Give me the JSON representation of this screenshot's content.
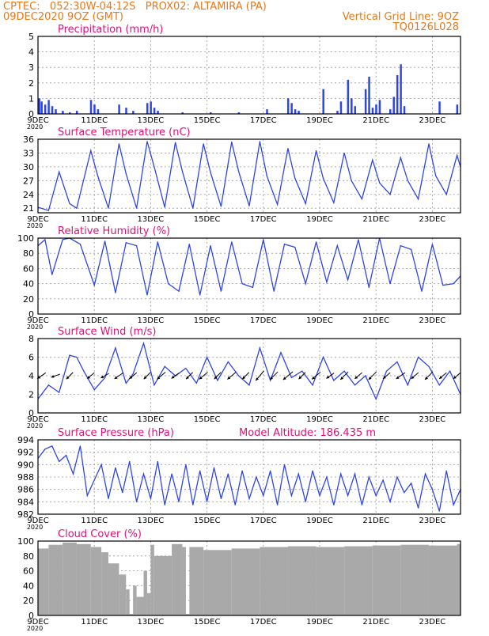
{
  "header": {
    "left_line1": "CPTEC:   052:30W-04:12S   PROX02: ALTAMIRA (PA)",
    "left_line2": "09DEC2020 9OZ (GMT)",
    "right_line2": "Vertical Grid Line: 9OZ",
    "right_line3": "TQ0126L028"
  },
  "colors": {
    "header": "#e8781a",
    "panel_title": "#e0107a",
    "series": "#2e46e8",
    "cloud": "#a9a9a9",
    "arrows": "#000000",
    "grid": "#9a9a9a"
  },
  "x_axis": {
    "type": "date",
    "range": [
      "2020-12-09T09:00Z",
      "2020-12-24T09:00Z"
    ],
    "tick_labels": [
      "9DEC",
      "11DEC",
      "13DEC",
      "15DEC",
      "17DEC",
      "19DEC",
      "21DEC",
      "23DEC"
    ],
    "tick_dates": [
      "2020-12-09T09:00Z",
      "2020-12-11T09:00Z",
      "2020-12-13T09:00Z",
      "2020-12-15T09:00Z",
      "2020-12-17T09:00Z",
      "2020-12-19T09:00Z",
      "2020-12-21T09:00Z",
      "2020-12-23T09:00Z"
    ],
    "year_label": "2020"
  },
  "chart_data": [
    {
      "type": "bar",
      "title": "Precipitation (mm/h)",
      "ylim": [
        0,
        5
      ],
      "yticks": [
        0,
        1,
        2,
        3,
        4,
        5
      ],
      "grid": true,
      "x": [
        "2020-12-09T10:00Z",
        "2020-12-09T12:00Z",
        "2020-12-09T15:00Z",
        "2020-12-09T18:00Z",
        "2020-12-09T21:00Z",
        "2020-12-10T00:00Z",
        "2020-12-10T06:00Z",
        "2020-12-10T12:00Z",
        "2020-12-10T18:00Z",
        "2020-12-11T06:00Z",
        "2020-12-11T09:00Z",
        "2020-12-11T12:00Z",
        "2020-12-12T06:00Z",
        "2020-12-12T12:00Z",
        "2020-12-12T18:00Z",
        "2020-12-13T06:00Z",
        "2020-12-13T09:00Z",
        "2020-12-13T12:00Z",
        "2020-12-13T15:00Z",
        "2020-12-14T12:00Z",
        "2020-12-15T12:00Z",
        "2020-12-16T12:00Z",
        "2020-12-17T12:00Z",
        "2020-12-18T06:00Z",
        "2020-12-18T09:00Z",
        "2020-12-18T12:00Z",
        "2020-12-18T15:00Z",
        "2020-12-19T12:00Z",
        "2020-12-20T00:00Z",
        "2020-12-20T03:00Z",
        "2020-12-20T09:00Z",
        "2020-12-20T12:00Z",
        "2020-12-20T15:00Z",
        "2020-12-21T00:00Z",
        "2020-12-21T03:00Z",
        "2020-12-21T06:00Z",
        "2020-12-21T09:00Z",
        "2020-12-21T12:00Z",
        "2020-12-21T21:00Z",
        "2020-12-22T00:00Z",
        "2020-12-22T03:00Z",
        "2020-12-22T06:00Z",
        "2020-12-22T09:00Z",
        "2020-12-23T15:00Z",
        "2020-12-24T06:00Z"
      ],
      "values": [
        1.0,
        0.8,
        0.6,
        0.9,
        0.5,
        0.3,
        0.2,
        0.1,
        0.2,
        0.9,
        0.6,
        0.3,
        0.6,
        0.4,
        0.2,
        0.7,
        0.8,
        0.4,
        0.2,
        0.1,
        0.1,
        0.1,
        0.3,
        1.0,
        0.7,
        0.3,
        0.2,
        1.6,
        0.2,
        0.8,
        2.2,
        1.0,
        0.5,
        1.6,
        2.4,
        0.4,
        0.6,
        0.9,
        0.3,
        1.1,
        2.5,
        3.2,
        0.5,
        0.8,
        0.6
      ]
    },
    {
      "type": "line",
      "title": "Surface Temperature (nC)",
      "ylim": [
        20,
        36
      ],
      "yticks": [
        21,
        24,
        27,
        30,
        33,
        36
      ],
      "grid": true,
      "x": [
        "2020-12-09T09:00Z",
        "2020-12-09T18:00Z",
        "2020-12-10T03:00Z",
        "2020-12-10T12:00Z",
        "2020-12-10T18:00Z",
        "2020-12-11T06:00Z",
        "2020-12-11T12:00Z",
        "2020-12-11T21:00Z",
        "2020-12-12T06:00Z",
        "2020-12-12T12:00Z",
        "2020-12-12T21:00Z",
        "2020-12-13T06:00Z",
        "2020-12-13T12:00Z",
        "2020-12-13T21:00Z",
        "2020-12-14T06:00Z",
        "2020-12-14T12:00Z",
        "2020-12-14T21:00Z",
        "2020-12-15T06:00Z",
        "2020-12-15T12:00Z",
        "2020-12-15T21:00Z",
        "2020-12-16T06:00Z",
        "2020-12-16T12:00Z",
        "2020-12-16T21:00Z",
        "2020-12-17T06:00Z",
        "2020-12-17T12:00Z",
        "2020-12-17T21:00Z",
        "2020-12-18T06:00Z",
        "2020-12-18T12:00Z",
        "2020-12-18T21:00Z",
        "2020-12-19T06:00Z",
        "2020-12-19T12:00Z",
        "2020-12-19T21:00Z",
        "2020-12-20T06:00Z",
        "2020-12-20T12:00Z",
        "2020-12-20T21:00Z",
        "2020-12-21T06:00Z",
        "2020-12-21T12:00Z",
        "2020-12-21T21:00Z",
        "2020-12-22T06:00Z",
        "2020-12-22T12:00Z",
        "2020-12-22T21:00Z",
        "2020-12-23T06:00Z",
        "2020-12-23T12:00Z",
        "2020-12-23T21:00Z",
        "2020-12-24T06:00Z",
        "2020-12-24T09:00Z"
      ],
      "values": [
        21.2,
        20.5,
        28.9,
        22.0,
        21.0,
        33.5,
        28.0,
        21.0,
        35.0,
        28.5,
        21.0,
        35.5,
        30.0,
        21.2,
        35.3,
        29.0,
        21.0,
        35.0,
        28.8,
        21.4,
        35.4,
        29.0,
        21.5,
        35.5,
        28.0,
        21.8,
        34.0,
        27.5,
        22.0,
        33.5,
        27.5,
        22.2,
        33.0,
        27.0,
        23.0,
        31.5,
        26.5,
        24.0,
        32.0,
        27.0,
        23.0,
        35.0,
        28.0,
        24.0,
        32.5,
        30.0
      ]
    },
    {
      "type": "line",
      "title": "Relative Humidity (%)",
      "ylim": [
        0,
        100
      ],
      "yticks": [
        0,
        20,
        40,
        60,
        80,
        100
      ],
      "grid": true,
      "x": [
        "2020-12-09T09:00Z",
        "2020-12-09T15:00Z",
        "2020-12-09T21:00Z",
        "2020-12-10T06:00Z",
        "2020-12-10T12:00Z",
        "2020-12-10T21:00Z",
        "2020-12-11T09:00Z",
        "2020-12-11T18:00Z",
        "2020-12-12T03:00Z",
        "2020-12-12T12:00Z",
        "2020-12-12T21:00Z",
        "2020-12-13T06:00Z",
        "2020-12-13T15:00Z",
        "2020-12-14T00:00Z",
        "2020-12-14T09:00Z",
        "2020-12-14T18:00Z",
        "2020-12-15T03:00Z",
        "2020-12-15T12:00Z",
        "2020-12-15T21:00Z",
        "2020-12-16T06:00Z",
        "2020-12-16T15:00Z",
        "2020-12-17T00:00Z",
        "2020-12-17T09:00Z",
        "2020-12-17T18:00Z",
        "2020-12-18T03:00Z",
        "2020-12-18T12:00Z",
        "2020-12-18T21:00Z",
        "2020-12-19T06:00Z",
        "2020-12-19T15:00Z",
        "2020-12-20T00:00Z",
        "2020-12-20T09:00Z",
        "2020-12-20T18:00Z",
        "2020-12-21T03:00Z",
        "2020-12-21T12:00Z",
        "2020-12-21T21:00Z",
        "2020-12-22T06:00Z",
        "2020-12-22T15:00Z",
        "2020-12-23T00:00Z",
        "2020-12-23T09:00Z",
        "2020-12-23T18:00Z",
        "2020-12-24T03:00Z",
        "2020-12-24T09:00Z"
      ],
      "values": [
        90,
        98,
        52,
        98,
        100,
        92,
        38,
        96,
        28,
        94,
        90,
        25,
        95,
        40,
        30,
        92,
        25,
        90,
        30,
        95,
        40,
        35,
        98,
        30,
        92,
        88,
        40,
        95,
        42,
        90,
        45,
        98,
        35,
        100,
        40,
        90,
        85,
        30,
        92,
        38,
        40,
        50
      ]
    },
    {
      "type": "line",
      "title": "Surface Wind (m/s)",
      "ylim": [
        0,
        8
      ],
      "yticks": [
        0,
        2,
        4,
        6,
        8
      ],
      "grid": true,
      "x": [
        "2020-12-09T09:00Z",
        "2020-12-09T18:00Z",
        "2020-12-10T03:00Z",
        "2020-12-10T12:00Z",
        "2020-12-10T18:00Z",
        "2020-12-11T00:00Z",
        "2020-12-11T09:00Z",
        "2020-12-11T18:00Z",
        "2020-12-12T03:00Z",
        "2020-12-12T12:00Z",
        "2020-12-12T18:00Z",
        "2020-12-13T03:00Z",
        "2020-12-13T12:00Z",
        "2020-12-13T21:00Z",
        "2020-12-14T06:00Z",
        "2020-12-14T15:00Z",
        "2020-12-15T00:00Z",
        "2020-12-15T09:00Z",
        "2020-12-15T18:00Z",
        "2020-12-16T03:00Z",
        "2020-12-16T12:00Z",
        "2020-12-16T21:00Z",
        "2020-12-17T06:00Z",
        "2020-12-17T15:00Z",
        "2020-12-18T00:00Z",
        "2020-12-18T09:00Z",
        "2020-12-18T18:00Z",
        "2020-12-19T03:00Z",
        "2020-12-19T12:00Z",
        "2020-12-19T21:00Z",
        "2020-12-20T06:00Z",
        "2020-12-20T15:00Z",
        "2020-12-21T00:00Z",
        "2020-12-21T09:00Z",
        "2020-12-21T18:00Z",
        "2020-12-22T03:00Z",
        "2020-12-22T12:00Z",
        "2020-12-22T21:00Z",
        "2020-12-23T06:00Z",
        "2020-12-23T15:00Z",
        "2020-12-24T00:00Z",
        "2020-12-24T09:00Z"
      ],
      "values": [
        1.5,
        3.0,
        2.2,
        6.2,
        6.0,
        4.5,
        2.5,
        3.8,
        7.0,
        3.2,
        4.2,
        7.5,
        3.0,
        5.0,
        4.0,
        4.8,
        3.2,
        6.0,
        3.5,
        5.5,
        4.0,
        3.0,
        7.0,
        3.5,
        6.5,
        3.8,
        4.5,
        3.0,
        6.0,
        3.5,
        4.5,
        3.0,
        4.0,
        1.5,
        4.5,
        5.5,
        3.0,
        6.0,
        5.0,
        3.0,
        4.5,
        2.0
      ],
      "arrows": {
        "description": "wind direction vectors",
        "x": [
          "2020-12-09T12:00Z",
          "2020-12-10T00:00Z",
          "2020-12-10T12:00Z",
          "2020-12-11T06:00Z",
          "2020-12-11T18:00Z",
          "2020-12-12T06:00Z",
          "2020-12-12T18:00Z",
          "2020-12-13T06:00Z",
          "2020-12-13T18:00Z",
          "2020-12-14T06:00Z",
          "2020-12-14T18:00Z",
          "2020-12-15T06:00Z",
          "2020-12-15T18:00Z",
          "2020-12-16T06:00Z",
          "2020-12-16T18:00Z",
          "2020-12-17T06:00Z",
          "2020-12-17T18:00Z",
          "2020-12-18T06:00Z",
          "2020-12-18T18:00Z",
          "2020-12-19T06:00Z",
          "2020-12-19T18:00Z",
          "2020-12-20T06:00Z",
          "2020-12-20T18:00Z",
          "2020-12-21T06:00Z",
          "2020-12-21T18:00Z",
          "2020-12-22T06:00Z",
          "2020-12-22T18:00Z",
          "2020-12-23T06:00Z",
          "2020-12-23T18:00Z",
          "2020-12-24T06:00Z"
        ],
        "speed": [
          3.2,
          3.0,
          3.0,
          3.0,
          3.0,
          3.5,
          3.0,
          3.0,
          3.5,
          3.0,
          3.0,
          3.5,
          3.0,
          3.5,
          3.0,
          4.0,
          3.5,
          4.0,
          3.0,
          3.5,
          3.0,
          3.5,
          3.0,
          3.5,
          3.0,
          3.5,
          3.0,
          3.5,
          3.0,
          3.0
        ],
        "dir_deg": [
          55,
          70,
          45,
          50,
          60,
          55,
          50,
          45,
          50,
          55,
          45,
          50,
          45,
          50,
          45,
          40,
          45,
          50,
          45,
          50,
          55,
          45,
          50,
          45,
          50,
          55,
          50,
          45,
          50,
          50
        ]
      }
    },
    {
      "type": "line",
      "title": "Surface Pressure (hPa)",
      "annotation": "Model Altitude: 186.435  m",
      "ylim": [
        982,
        994
      ],
      "yticks": [
        982,
        984,
        986,
        988,
        990,
        992,
        994
      ],
      "grid": true,
      "x": [
        "2020-12-09T09:00Z",
        "2020-12-09T15:00Z",
        "2020-12-09T21:00Z",
        "2020-12-10T03:00Z",
        "2020-12-10T09:00Z",
        "2020-12-10T15:00Z",
        "2020-12-10T21:00Z",
        "2020-12-11T03:00Z",
        "2020-12-11T09:00Z",
        "2020-12-11T15:00Z",
        "2020-12-11T21:00Z",
        "2020-12-12T03:00Z",
        "2020-12-12T09:00Z",
        "2020-12-12T15:00Z",
        "2020-12-12T21:00Z",
        "2020-12-13T03:00Z",
        "2020-12-13T09:00Z",
        "2020-12-13T15:00Z",
        "2020-12-13T21:00Z",
        "2020-12-14T03:00Z",
        "2020-12-14T09:00Z",
        "2020-12-14T15:00Z",
        "2020-12-14T21:00Z",
        "2020-12-15T03:00Z",
        "2020-12-15T09:00Z",
        "2020-12-15T15:00Z",
        "2020-12-15T21:00Z",
        "2020-12-16T03:00Z",
        "2020-12-16T09:00Z",
        "2020-12-16T15:00Z",
        "2020-12-16T21:00Z",
        "2020-12-17T03:00Z",
        "2020-12-17T09:00Z",
        "2020-12-17T15:00Z",
        "2020-12-17T21:00Z",
        "2020-12-18T03:00Z",
        "2020-12-18T09:00Z",
        "2020-12-18T15:00Z",
        "2020-12-18T21:00Z",
        "2020-12-19T03:00Z",
        "2020-12-19T09:00Z",
        "2020-12-19T15:00Z",
        "2020-12-19T21:00Z",
        "2020-12-20T03:00Z",
        "2020-12-20T09:00Z",
        "2020-12-20T15:00Z",
        "2020-12-20T21:00Z",
        "2020-12-21T03:00Z",
        "2020-12-21T09:00Z",
        "2020-12-21T15:00Z",
        "2020-12-21T21:00Z",
        "2020-12-22T03:00Z",
        "2020-12-22T09:00Z",
        "2020-12-22T15:00Z",
        "2020-12-22T21:00Z",
        "2020-12-23T03:00Z",
        "2020-12-23T09:00Z",
        "2020-12-23T15:00Z",
        "2020-12-23T21:00Z",
        "2020-12-24T03:00Z",
        "2020-12-24T09:00Z"
      ],
      "values": [
        991.0,
        992.5,
        993.0,
        990.5,
        991.5,
        988.5,
        993.0,
        985.0,
        987.5,
        990.0,
        984.5,
        989.5,
        985.5,
        990.5,
        984.0,
        988.5,
        984.5,
        990.5,
        983.5,
        988.5,
        984.0,
        990.0,
        983.5,
        989.0,
        984.0,
        989.5,
        984.5,
        988.5,
        983.5,
        989.0,
        984.5,
        988.0,
        985.0,
        989.0,
        983.5,
        990.0,
        985.0,
        988.5,
        984.0,
        989.0,
        985.0,
        988.0,
        983.5,
        988.5,
        985.0,
        988.5,
        983.5,
        988.0,
        985.0,
        987.5,
        984.0,
        988.0,
        985.5,
        987.0,
        983.0,
        988.5,
        986.0,
        982.5,
        989.0,
        983.5,
        986.0
      ]
    },
    {
      "type": "bar",
      "title": "Cloud Cover (%)",
      "ylim": [
        0,
        100
      ],
      "yticks": [
        0,
        20,
        40,
        60,
        80,
        100
      ],
      "grid": true,
      "x": [
        "2020-12-09T09:00Z",
        "2020-12-09T18:00Z",
        "2020-12-10T06:00Z",
        "2020-12-10T18:00Z",
        "2020-12-11T06:00Z",
        "2020-12-11T15:00Z",
        "2020-12-11T21:00Z",
        "2020-12-12T06:00Z",
        "2020-12-12T12:00Z",
        "2020-12-12T15:00Z",
        "2020-12-12T18:00Z",
        "2020-12-12T21:00Z",
        "2020-12-13T03:00Z",
        "2020-12-13T06:00Z",
        "2020-12-13T09:00Z",
        "2020-12-13T12:00Z",
        "2020-12-14T03:00Z",
        "2020-12-14T12:00Z",
        "2020-12-14T15:00Z",
        "2020-12-14T18:00Z",
        "2020-12-15T06:00Z",
        "2020-12-16T06:00Z",
        "2020-12-17T06:00Z",
        "2020-12-18T06:00Z",
        "2020-12-19T06:00Z",
        "2020-12-20T06:00Z",
        "2020-12-21T06:00Z",
        "2020-12-22T06:00Z",
        "2020-12-23T06:00Z",
        "2020-12-24T06:00Z"
      ],
      "values": [
        90,
        95,
        98,
        96,
        92,
        85,
        70,
        55,
        35,
        2,
        40,
        25,
        60,
        30,
        95,
        80,
        96,
        92,
        2,
        92,
        88,
        90,
        92,
        93,
        92,
        93,
        94,
        95,
        94,
        96
      ]
    }
  ]
}
